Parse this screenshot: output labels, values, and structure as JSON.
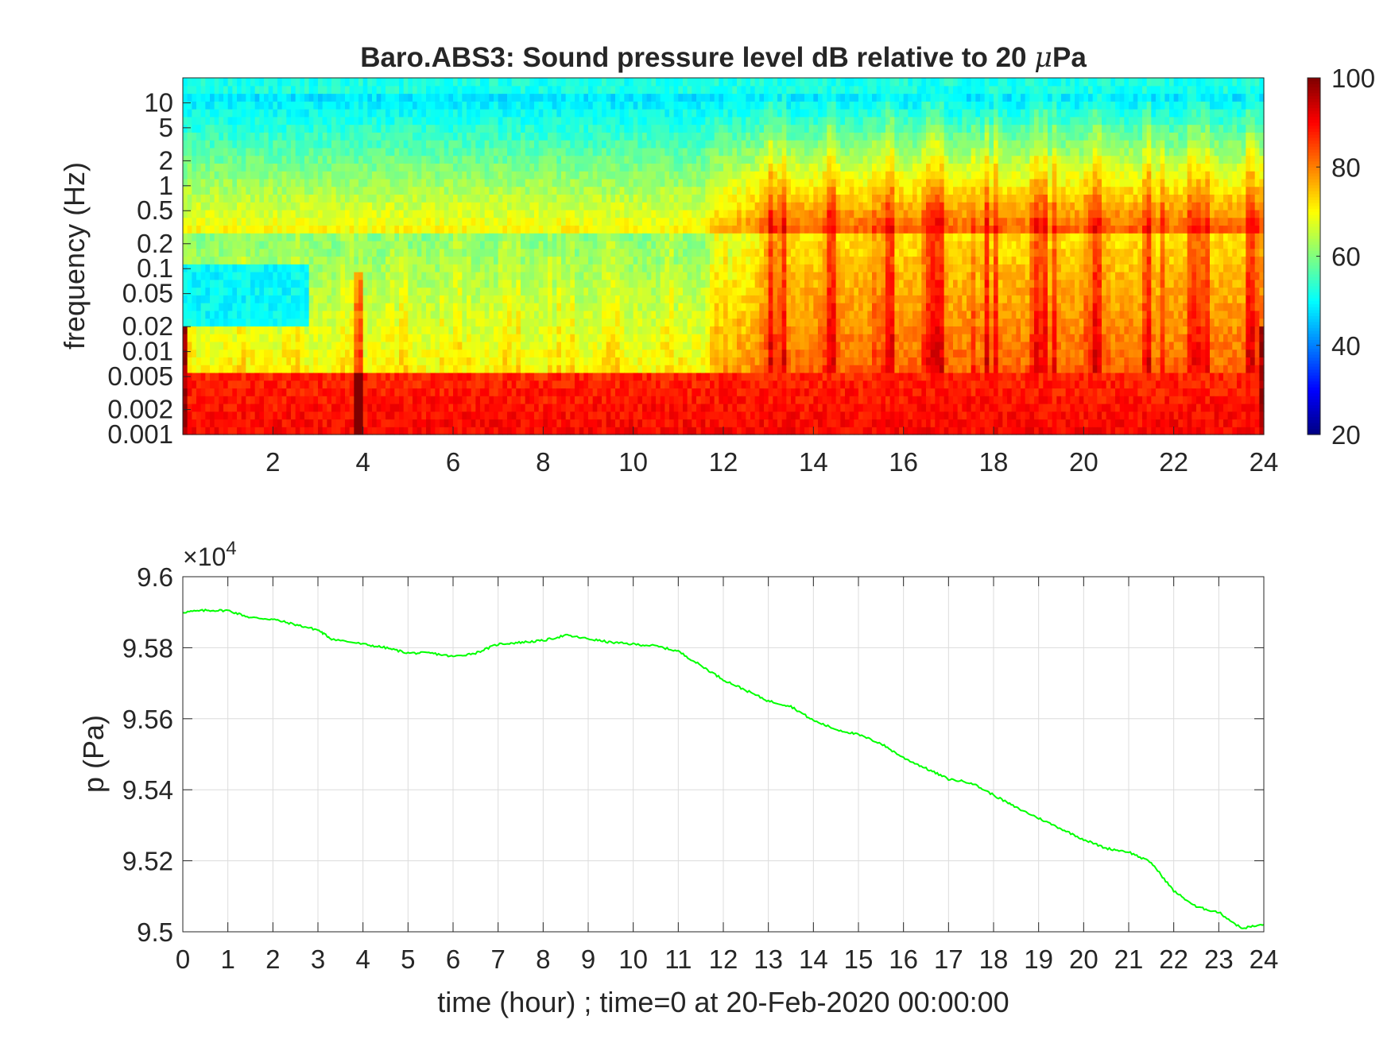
{
  "chart_data": [
    {
      "type": "heatmap",
      "title_prefix": "Baro.ABS3: Sound pressure level dB relative to 20 ",
      "title_unit_symbol": "μ",
      "title_unit_suffix": "Pa",
      "xlabel": "",
      "ylabel": "frequency (Hz)",
      "x_scale": "linear",
      "y_scale": "log",
      "xlim": [
        0,
        24
      ],
      "ylim": [
        0.001,
        20
      ],
      "xticks": [
        2,
        4,
        6,
        8,
        10,
        12,
        14,
        16,
        18,
        20,
        22,
        24
      ],
      "xtick_labels": [
        "2",
        "4",
        "6",
        "8",
        "10",
        "12",
        "14",
        "16",
        "18",
        "20",
        "22",
        "24"
      ],
      "yticks": [
        0.001,
        0.002,
        0.005,
        0.01,
        0.02,
        0.05,
        0.1,
        0.2,
        0.5,
        1,
        2,
        5,
        10
      ],
      "ytick_labels": [
        "0.001",
        "0.002",
        "0.005",
        "0.01",
        "0.02",
        "0.05",
        "0.1",
        "0.2",
        "0.5",
        "1",
        "2",
        "5",
        "10"
      ],
      "colormap": "jet",
      "colorbar": {
        "clim": [
          20,
          100
        ],
        "ticks": [
          20,
          40,
          60,
          80,
          100
        ],
        "tick_labels": [
          "20",
          "40",
          "60",
          "80",
          "100"
        ],
        "placement": "right"
      },
      "z_description_levels_db": {
        "low_freq_band_0.001_0.005Hz": 90,
        "mid_band_0.02_0.2Hz_hours_0_12": 70,
        "mid_band_0.02_0.2Hz_hours_12_24": 82,
        "high_band_2_10Hz": 48,
        "top_band_above_10Hz": 52
      },
      "grid": false
    },
    {
      "type": "line",
      "title": "",
      "xlabel": "time (hour) ; time=0 at 20-Feb-2020 00:00:00",
      "ylabel": "p (Pa)",
      "exponent_label_base": "×10",
      "exponent_label_power": "4",
      "xlim": [
        0,
        24
      ],
      "ylim": [
        95000,
        96000
      ],
      "xticks": [
        0,
        1,
        2,
        3,
        4,
        5,
        6,
        7,
        8,
        9,
        10,
        11,
        12,
        13,
        14,
        15,
        16,
        17,
        18,
        19,
        20,
        21,
        22,
        23,
        24
      ],
      "xtick_labels": [
        "0",
        "1",
        "2",
        "3",
        "4",
        "5",
        "6",
        "7",
        "8",
        "9",
        "10",
        "11",
        "12",
        "13",
        "14",
        "15",
        "16",
        "17",
        "18",
        "19",
        "20",
        "21",
        "22",
        "23",
        "24"
      ],
      "yticks": [
        95000,
        95200,
        95400,
        95600,
        95800,
        96000
      ],
      "ytick_labels": [
        "9.5",
        "9.52",
        "9.54",
        "9.56",
        "9.58",
        "9.6"
      ],
      "grid": true,
      "series": [
        {
          "color": "#00ff00",
          "x": [
            0,
            0.5,
            1,
            1.5,
            2,
            2.5,
            3,
            3.3,
            4,
            4.5,
            5,
            5.5,
            6,
            6.5,
            7,
            7.5,
            8,
            8.5,
            9,
            9.5,
            10,
            10.5,
            11,
            11.5,
            12,
            12.5,
            13,
            13.5,
            14,
            14.5,
            15,
            15.5,
            16,
            16.5,
            17,
            17.5,
            18,
            18.5,
            19,
            19.5,
            20,
            20.5,
            21,
            21.5,
            22,
            22.5,
            23,
            23.5,
            24
          ],
          "y": [
            95900,
            95905,
            95905,
            95885,
            95880,
            95865,
            95850,
            95825,
            95810,
            95800,
            95785,
            95785,
            95775,
            95785,
            95810,
            95815,
            95820,
            95835,
            95825,
            95815,
            95810,
            95805,
            95790,
            95750,
            95710,
            95680,
            95650,
            95635,
            95595,
            95570,
            95555,
            95530,
            95490,
            95460,
            95430,
            95420,
            95385,
            95350,
            95320,
            95290,
            95260,
            95235,
            95225,
            95195,
            95115,
            95070,
            95055,
            95010,
            95020
          ]
        }
      ]
    }
  ]
}
